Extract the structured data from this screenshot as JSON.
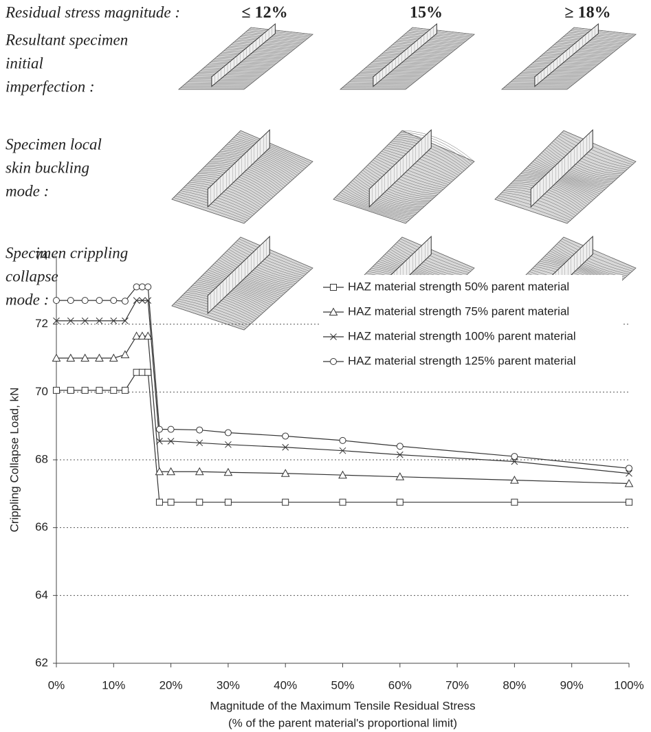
{
  "illustration": {
    "row_header": "Residual stress magnitude :",
    "columns": [
      "≤ 12%",
      "15%",
      "≥ 18%"
    ],
    "rows": [
      [
        "Resultant specimen",
        "initial",
        "imperfection :"
      ],
      [
        "Specimen local",
        "skin buckling",
        "mode :"
      ],
      [
        "Specimen crippling",
        "collapse",
        "mode :"
      ]
    ]
  },
  "chart_data": {
    "type": "line",
    "xlabel": [
      "Magnitude of the Maximum Tensile Residual Stress",
      "(% of the parent material's proportional limit)"
    ],
    "ylabel": "Crippling Collapse Load, kN",
    "x": [
      0,
      2.5,
      5,
      7.5,
      10,
      12,
      14,
      15,
      16,
      18,
      20,
      25,
      30,
      40,
      50,
      60,
      80,
      100
    ],
    "series": [
      {
        "name": "HAZ material strength 50% parent material",
        "marker": "square",
        "color": "#333333",
        "values": [
          70.05,
          70.05,
          70.05,
          70.05,
          70.05,
          70.05,
          70.58,
          70.58,
          70.58,
          66.75,
          66.75,
          66.75,
          66.75,
          66.75,
          66.75,
          66.75,
          66.75,
          66.75
        ]
      },
      {
        "name": "HAZ material strength 75% parent material",
        "marker": "triangle",
        "color": "#333333",
        "values": [
          71.0,
          71.0,
          71.0,
          71.0,
          71.0,
          71.1,
          71.65,
          71.65,
          71.65,
          67.65,
          67.65,
          67.65,
          67.63,
          67.6,
          67.55,
          67.5,
          67.4,
          67.3
        ]
      },
      {
        "name": "HAZ material strength 100% parent material",
        "marker": "cross",
        "color": "#333333",
        "values": [
          72.1,
          72.1,
          72.1,
          72.1,
          72.1,
          72.1,
          72.7,
          72.7,
          72.7,
          68.55,
          68.55,
          68.5,
          68.45,
          68.37,
          68.27,
          68.15,
          67.95,
          67.6
        ]
      },
      {
        "name": "HAZ material strength 125% parent material",
        "marker": "circle",
        "color": "#333333",
        "values": [
          72.7,
          72.7,
          72.7,
          72.7,
          72.7,
          72.68,
          73.1,
          73.1,
          73.1,
          68.9,
          68.9,
          68.88,
          68.8,
          68.7,
          68.57,
          68.4,
          68.1,
          67.75
        ]
      }
    ],
    "xlim": [
      0,
      100
    ],
    "xticks": [
      {
        "value": 0,
        "label": "0%"
      },
      {
        "value": 10,
        "label": "10%"
      },
      {
        "value": 20,
        "label": "20%"
      },
      {
        "value": 30,
        "label": "30%"
      },
      {
        "value": 40,
        "label": "40%"
      },
      {
        "value": 50,
        "label": "50%"
      },
      {
        "value": 60,
        "label": "60%"
      },
      {
        "value": 70,
        "label": "70%"
      },
      {
        "value": 80,
        "label": "80%"
      },
      {
        "value": 90,
        "label": "90%"
      },
      {
        "value": 100,
        "label": "100%"
      }
    ],
    "ylim": [
      62,
      74
    ],
    "yticks": [
      62,
      64,
      66,
      68,
      70,
      72,
      74
    ],
    "grid": true,
    "legend": "upper right"
  }
}
